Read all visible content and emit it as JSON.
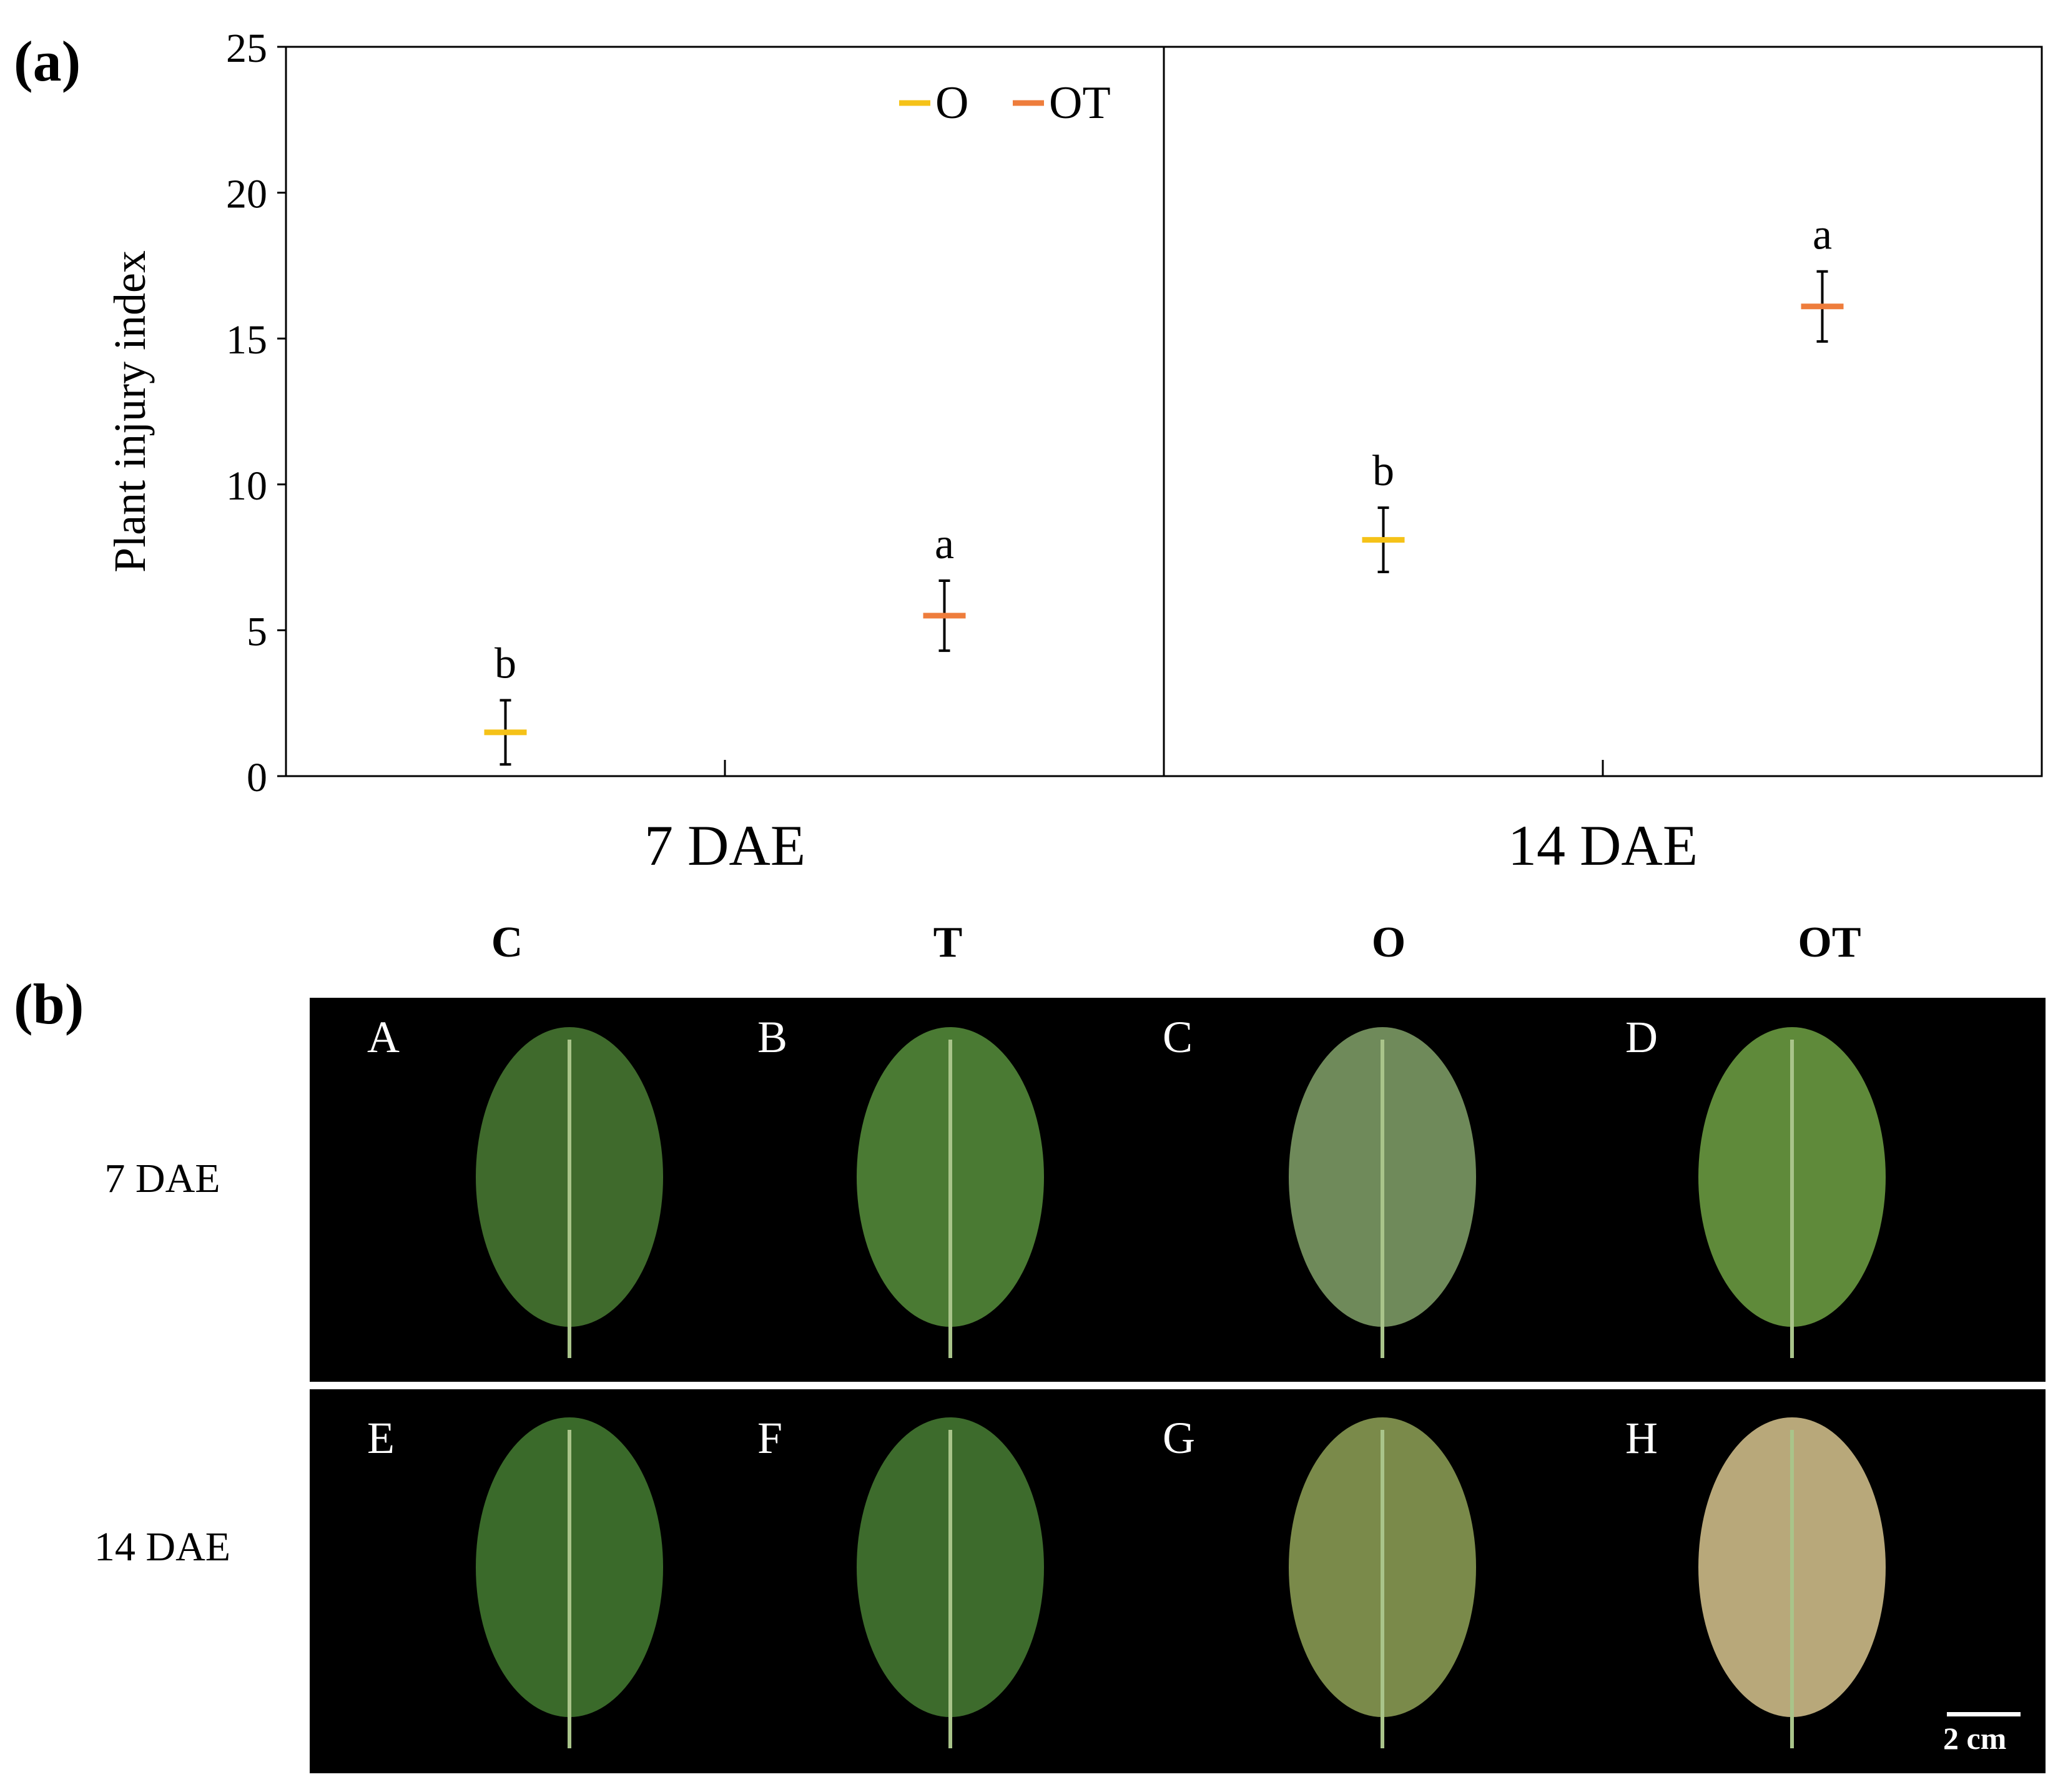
{
  "panels": {
    "a": "(a)",
    "b": "(b)"
  },
  "colors": {
    "O": "#f5c218",
    "OT": "#ee7d3c",
    "error_bar": "#000000"
  },
  "chart_data": {
    "type": "scatter",
    "xlabel": "",
    "ylabel": "Plant injury index",
    "ylim": [
      0,
      25
    ],
    "yticks": [
      "0",
      "5",
      "10",
      "15",
      "20",
      "25"
    ],
    "grid": false,
    "legend": {
      "position": "top-right",
      "entries": [
        "O",
        "OT"
      ]
    },
    "groups": [
      "7 DAE",
      "14 DAE"
    ],
    "series": [
      {
        "name": "O",
        "values": [
          1.5,
          8.1
        ],
        "errors": [
          1.1,
          1.1
        ],
        "letters": [
          "b",
          "b"
        ]
      },
      {
        "name": "OT",
        "values": [
          5.5,
          16.1
        ],
        "errors": [
          1.2,
          1.2
        ],
        "letters": [
          "a",
          "a"
        ]
      }
    ]
  },
  "photos": {
    "columns": [
      "C",
      "T",
      "O",
      "OT"
    ],
    "rows": [
      {
        "label": "7 DAE",
        "cells": [
          "A",
          "B",
          "C",
          "D"
        ]
      },
      {
        "label": "14 DAE",
        "cells": [
          "E",
          "F",
          "G",
          "H"
        ]
      }
    ],
    "scale_bar": "2 cm",
    "leaves": [
      [
        "#3f6a2c",
        "#4a7a33",
        "#6f8a5a",
        "#5f8a3a"
      ],
      [
        "#3a6a2a",
        "#3d6b2c",
        "#7a8a4a",
        "#b8a87a"
      ]
    ]
  }
}
